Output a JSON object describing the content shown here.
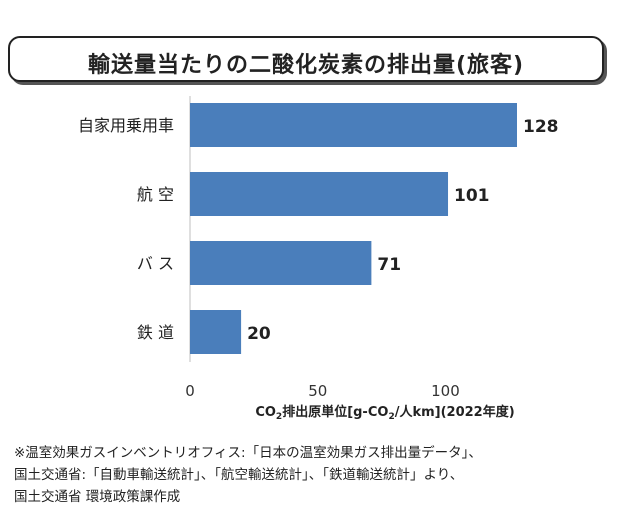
{
  "chart_data": {
    "type": "bar",
    "orientation": "horizontal",
    "title": "輸送量当たりの二酸化炭素の排出量(旅客)",
    "categories": [
      "自家用乗用車",
      "航 空",
      "バ ス",
      "鉄 道"
    ],
    "values": [
      128,
      101,
      71,
      20
    ],
    "data_labels": [
      "128",
      "101",
      "71",
      "20"
    ],
    "xlim": [
      0,
      150
    ],
    "xticks": [
      0,
      50,
      100
    ],
    "xtick_labels": [
      "0",
      "50",
      "100"
    ],
    "xlabel_parts": [
      "CO",
      "2",
      "排出原単位[g-CO",
      "2",
      "/人km](2022年度)"
    ],
    "bar_color": "#4a7ebb",
    "grid": false,
    "legend": "none"
  },
  "footnote": {
    "lines": [
      "※温室効果ガスインベントリオフィス:「日本の温室効果ガス排出量データ」、",
      "国土交通省:「自動車輸送統計」、「航空輸送統計」、「鉄道輸送統計」より、",
      "国土交通省 環境政策課作成"
    ]
  }
}
